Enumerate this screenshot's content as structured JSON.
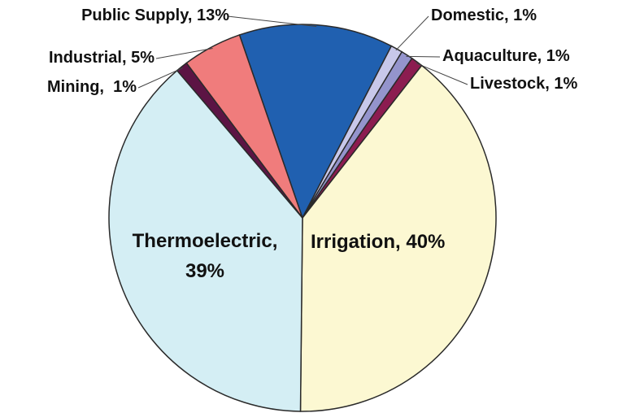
{
  "chart_data": {
    "type": "pie",
    "categories": [
      "Public Supply",
      "Domestic",
      "Aquaculture",
      "Livestock",
      "Irrigation",
      "Thermoelectric",
      "Mining",
      "Industrial"
    ],
    "values": [
      13,
      1,
      1,
      1,
      40,
      39,
      1,
      5
    ],
    "labels": [
      [
        "Public Supply, 13%"
      ],
      [
        "Domestic, 1%"
      ],
      [
        "Aquaculture, 1%"
      ],
      [
        "Livestock, 1%"
      ],
      [
        "Irrigation, 40%"
      ],
      [
        "Thermoelectric,",
        "39%"
      ],
      [
        "Mining,  1%"
      ],
      [
        "Industrial, 5%"
      ]
    ],
    "colors": [
      "#2060b0",
      "#c8c8ea",
      "#9494cc",
      "#8c1c50",
      "#fcf8d2",
      "#d4eef4",
      "#5c1444",
      "#f07c7c"
    ]
  }
}
